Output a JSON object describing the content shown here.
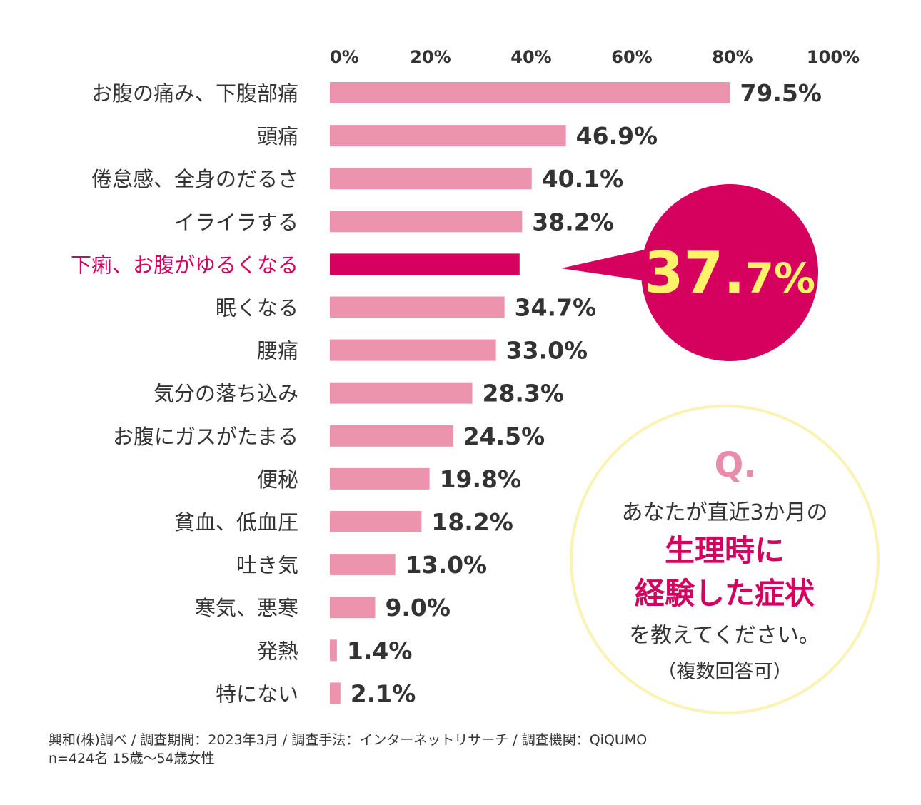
{
  "chart_data": {
    "type": "bar",
    "orientation": "horizontal",
    "categories": [
      "お腹の痛み、下腹部痛",
      "頭痛",
      "倦怠感、全身のだるさ",
      "イライラする",
      "下痢、お腹がゆるくなる",
      "眠くなる",
      "腰痛",
      "気分の落ち込み",
      "お腹にガスがたまる",
      "便秘",
      "貧血、低血圧",
      "吐き気",
      "寒気、悪寒",
      "発熱",
      "特にない"
    ],
    "values": [
      79.5,
      46.9,
      40.1,
      38.2,
      37.7,
      34.7,
      33.0,
      28.3,
      24.5,
      19.8,
      18.2,
      13.0,
      9.0,
      1.4,
      2.1
    ],
    "value_labels": [
      "79.5%",
      "46.9%",
      "40.1%",
      "38.2%",
      null,
      "34.7%",
      "33.0%",
      "28.3%",
      "24.5%",
      "19.8%",
      "18.2%",
      "13.0%",
      "9.0%",
      "1.4%",
      "2.1%"
    ],
    "highlight_index": 4,
    "xlim": [
      0,
      100
    ],
    "x_ticks": [
      "0%",
      "20%",
      "40%",
      "60%",
      "80%",
      "100%"
    ],
    "grid": false,
    "colors": {
      "bar": "#ec93ad",
      "highlight": "#d6005e",
      "callout_text": "#fff36a"
    },
    "callout": {
      "big": "37.",
      "small": "7%"
    }
  },
  "question": {
    "mark": "Q.",
    "line1": "あなたが直近3か月の",
    "highlight1": "生理時に",
    "highlight2": "経験した症状",
    "line2": "を教えてください。",
    "note": "（複数回答可）",
    "colors": {
      "border": "#fbf3b4",
      "mark": "#e98bab",
      "highlight": "#d6005e"
    }
  },
  "footer": {
    "line1": "興和(株)調べ / 調査期間：2023年3月 / 調査手法：インターネットリサーチ / 調査機関：QiQUMO",
    "line2": "n=424名 15歳〜54歳女性"
  }
}
